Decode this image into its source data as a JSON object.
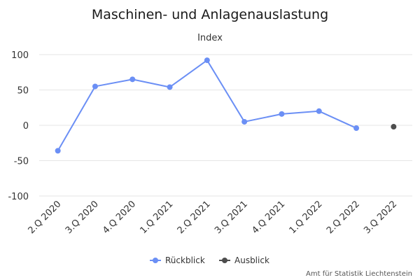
{
  "chart_data": {
    "type": "line",
    "title": "Maschinen- und Anlagenauslastung",
    "subtitle": "Index",
    "categories": [
      "2.Q 2020",
      "3.Q 2020",
      "4.Q 2020",
      "1.Q 2021",
      "2.Q 2021",
      "3.Q 2021",
      "4.Q 2021",
      "1.Q 2022",
      "2.Q 2022",
      "3.Q 2022"
    ],
    "series": [
      {
        "name": "Rückblick",
        "color": "#6b8ff5",
        "values": [
          -36,
          55,
          65,
          54,
          92,
          5,
          16,
          20,
          -4,
          null
        ]
      },
      {
        "name": "Ausblick",
        "color": "#4d4d4d",
        "values": [
          null,
          null,
          null,
          null,
          null,
          null,
          null,
          null,
          null,
          -2
        ]
      }
    ],
    "ylim": [
      -100,
      100
    ],
    "yticks": [
      -100,
      -50,
      0,
      50,
      100
    ],
    "ytick_labels": [
      "-100",
      "-50",
      "0",
      "50",
      "100"
    ],
    "grid": true,
    "legend_position": "bottom-center"
  },
  "credits": "Amt für Statistik Liechtenstein"
}
